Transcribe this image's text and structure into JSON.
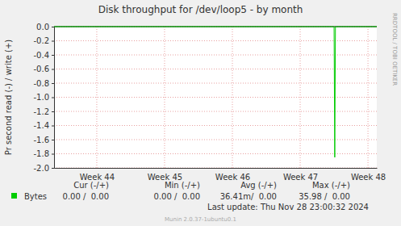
{
  "chart_data": {
    "type": "line",
    "title": "Disk throughput for /dev/loop5 - by month",
    "y_label": "Pr second read (-) / write (+)",
    "x": [
      43.87,
      48.0,
      48.01,
      48.02,
      48.63
    ],
    "series": [
      {
        "name": "Bytes",
        "color": "#00cc00",
        "values": [
          0,
          0,
          -1.85,
          0,
          0
        ],
        "stats": [
          "0.00 /  0.00",
          "0.00 /  0.00",
          "36.41m/  0.00",
          "35.98 /  0.00"
        ]
      }
    ],
    "stats_headers": [
      "Cur (-/+)",
      "Min (-/+)",
      "Avg (-/+)",
      "Max (-/+)"
    ],
    "xlim": [
      43.87,
      48.63
    ],
    "xticks": [
      {
        "value": 44.5,
        "label": "Week 44"
      },
      {
        "value": 45.5,
        "label": "Week 45"
      },
      {
        "value": 46.5,
        "label": "Week 46"
      },
      {
        "value": 47.5,
        "label": "Week 47"
      },
      {
        "value": 48.5,
        "label": "Week 48"
      }
    ],
    "ylim": [
      -2,
      0
    ],
    "yticks": [
      {
        "value": 0,
        "label": "0.0"
      },
      -0.2,
      -0.4,
      -0.6,
      -0.8,
      {
        "value": -1,
        "label": "-1.0"
      },
      -1.2,
      -1.4,
      -1.6,
      -1.8,
      {
        "value": -2,
        "label": "-2.0"
      }
    ],
    "grid": true,
    "footer": "Last update: Thu Nov 28 23:00:32 2024",
    "credit": "Munin 2.0.37-1ubuntu0.1",
    "watermark": "RRDTOOL / TOBI OETIKER"
  }
}
